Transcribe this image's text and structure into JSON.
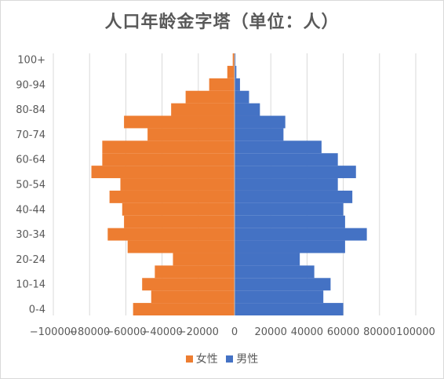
{
  "chart_data": {
    "type": "bar",
    "orientation": "horizontal",
    "title": "人口年龄金字塔（单位：人）",
    "categories": [
      "0-4",
      "5-9",
      "10-14",
      "15-19",
      "20-24",
      "25-29",
      "30-34",
      "35-39",
      "40-44",
      "45-49",
      "50-54",
      "55-59",
      "60-64",
      "65-69",
      "70-74",
      "75-79",
      "80-84",
      "85-89",
      "90-94",
      "95-99",
      "100+"
    ],
    "category_tick_labels": [
      "0-4",
      "10-14",
      "20-24",
      "30-34",
      "40-44",
      "50-54",
      "60-64",
      "70-74",
      "80-84",
      "90-94",
      "100+"
    ],
    "series": [
      {
        "name": "女性",
        "color": "#ED7D31",
        "values": [
          -56000,
          -46000,
          -51000,
          -44000,
          -34000,
          -59000,
          -70000,
          -61000,
          -62000,
          -69000,
          -63000,
          -79000,
          -73000,
          -73000,
          -48000,
          -61000,
          -35000,
          -27000,
          -14000,
          -4000,
          -1000
        ]
      },
      {
        "name": "男性",
        "color": "#4472C4",
        "values": [
          60000,
          49000,
          53000,
          44000,
          36000,
          61000,
          73000,
          61000,
          60000,
          65000,
          57000,
          67000,
          57000,
          48000,
          27000,
          28000,
          14000,
          8000,
          3000,
          1000,
          500
        ]
      }
    ],
    "xlim": [
      -100000,
      100000
    ],
    "x_ticks": [
      -100000,
      -80000,
      -60000,
      -40000,
      -20000,
      0,
      20000,
      40000,
      60000,
      80000,
      100000
    ],
    "x_tick_labels": [
      "−100000",
      "−80000",
      "−60000",
      "−40000",
      "−20000",
      "0",
      "20000",
      "40000",
      "60000",
      "80000",
      "100000"
    ],
    "grid": "vertical",
    "legend_position": "bottom"
  }
}
